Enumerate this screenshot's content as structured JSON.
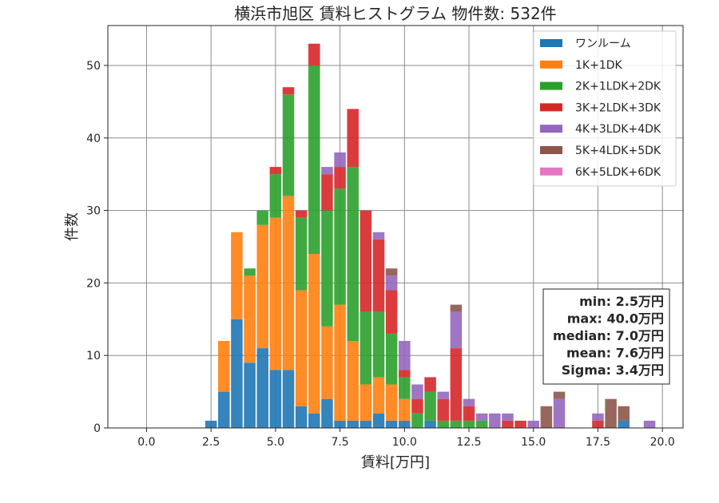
{
  "chart_data": {
    "type": "bar",
    "title": "横浜市旭区 賃料ヒストグラム 物件数: 532件",
    "xlabel": "賃料[万円]",
    "ylabel": "件数",
    "xlim": [
      -1.5,
      20.8
    ],
    "ylim": [
      0,
      55.5
    ],
    "xticks": [
      0.0,
      2.5,
      5.0,
      7.5,
      10.0,
      12.5,
      15.0,
      17.5,
      20.0
    ],
    "xtick_labels": [
      "0.0",
      "2.5",
      "5.0",
      "7.5",
      "10.0",
      "12.5",
      "15.0",
      "17.5",
      "20.0"
    ],
    "yticks": [
      0,
      10,
      20,
      30,
      40,
      50
    ],
    "ytick_labels": [
      "0",
      "10",
      "20",
      "30",
      "40",
      "50"
    ],
    "grid": true,
    "stacked": true,
    "bin_width": 0.5,
    "legend_position": "top-right",
    "bins": [
      2.5,
      3.0,
      3.5,
      4.0,
      4.5,
      5.0,
      5.5,
      6.0,
      6.5,
      7.0,
      7.5,
      8.0,
      8.5,
      9.0,
      9.5,
      10.0,
      10.5,
      11.0,
      11.5,
      12.0,
      12.5,
      13.0,
      13.5,
      14.0,
      14.5,
      15.0,
      15.5,
      16.0,
      16.5,
      17.0,
      17.5,
      18.0,
      18.5,
      19.0,
      19.5
    ],
    "series": [
      {
        "name": "ワンルーム",
        "color": "#1f77b4",
        "values": [
          1,
          5,
          15,
          9,
          11,
          8,
          8,
          3,
          2,
          4,
          1,
          1,
          1,
          2,
          1,
          1,
          0,
          1,
          0,
          0,
          0,
          0,
          0,
          0,
          0,
          0,
          0,
          0,
          0,
          0,
          0,
          0,
          1,
          0,
          0
        ]
      },
      {
        "name": "1K+1DK",
        "color": "#ff7f0e",
        "values": [
          0,
          7,
          12,
          12,
          17,
          21,
          24,
          16,
          22,
          10,
          16,
          11,
          5,
          5,
          5,
          3,
          0,
          0,
          0,
          0,
          0,
          0,
          0,
          0,
          0,
          0,
          0,
          0,
          0,
          0,
          0,
          0,
          0,
          0,
          0
        ]
      },
      {
        "name": "2K+1LDK+2DK",
        "color": "#2ca02c",
        "values": [
          0,
          0,
          0,
          1,
          2,
          6,
          14,
          10,
          26,
          16,
          16,
          24,
          10,
          9,
          7,
          3,
          2,
          4,
          1,
          1,
          1,
          1,
          0,
          0,
          0,
          0,
          0,
          0,
          0,
          0,
          0,
          0,
          0,
          0,
          0
        ]
      },
      {
        "name": "3K+2LDK+3DK",
        "color": "#d62728",
        "values": [
          0,
          0,
          0,
          0,
          0,
          1,
          1,
          1,
          3,
          5,
          3,
          8,
          14,
          10,
          6,
          1,
          2,
          2,
          3,
          10,
          2,
          0,
          0,
          1,
          1,
          0,
          0,
          0,
          0,
          0,
          1,
          0,
          0,
          0,
          0
        ]
      },
      {
        "name": "4K+3LDK+4DK",
        "color": "#9467bd",
        "values": [
          0,
          0,
          0,
          0,
          0,
          0,
          0,
          0,
          0,
          1,
          2,
          0,
          0,
          1,
          2,
          4,
          2,
          0,
          1,
          5,
          1,
          1,
          2,
          1,
          0,
          1,
          0,
          4,
          0,
          0,
          1,
          0,
          0,
          0,
          1
        ]
      },
      {
        "name": "5K+4LDK+5DK",
        "color": "#8c564b",
        "values": [
          0,
          0,
          0,
          0,
          0,
          0,
          0,
          0,
          0,
          0,
          0,
          0,
          0,
          0,
          1,
          0,
          0,
          0,
          0,
          1,
          0,
          0,
          0,
          0,
          0,
          0,
          3,
          1,
          0,
          0,
          0,
          4,
          2,
          0,
          0
        ]
      },
      {
        "name": "6K+5LDK+6DK",
        "color": "#e377c2",
        "values": [
          0,
          0,
          0,
          0,
          0,
          0,
          0,
          0,
          0,
          0,
          0,
          0,
          0,
          0,
          0,
          0,
          0,
          0,
          0,
          0,
          0,
          0,
          0,
          0,
          0,
          0,
          0,
          0,
          0,
          0,
          0,
          0,
          0,
          0,
          0
        ]
      }
    ],
    "stats": [
      "min: 2.5万円",
      "max: 40.0万円",
      "median: 7.0万円",
      "mean: 7.6万円",
      "Sigma: 3.4万円"
    ]
  }
}
